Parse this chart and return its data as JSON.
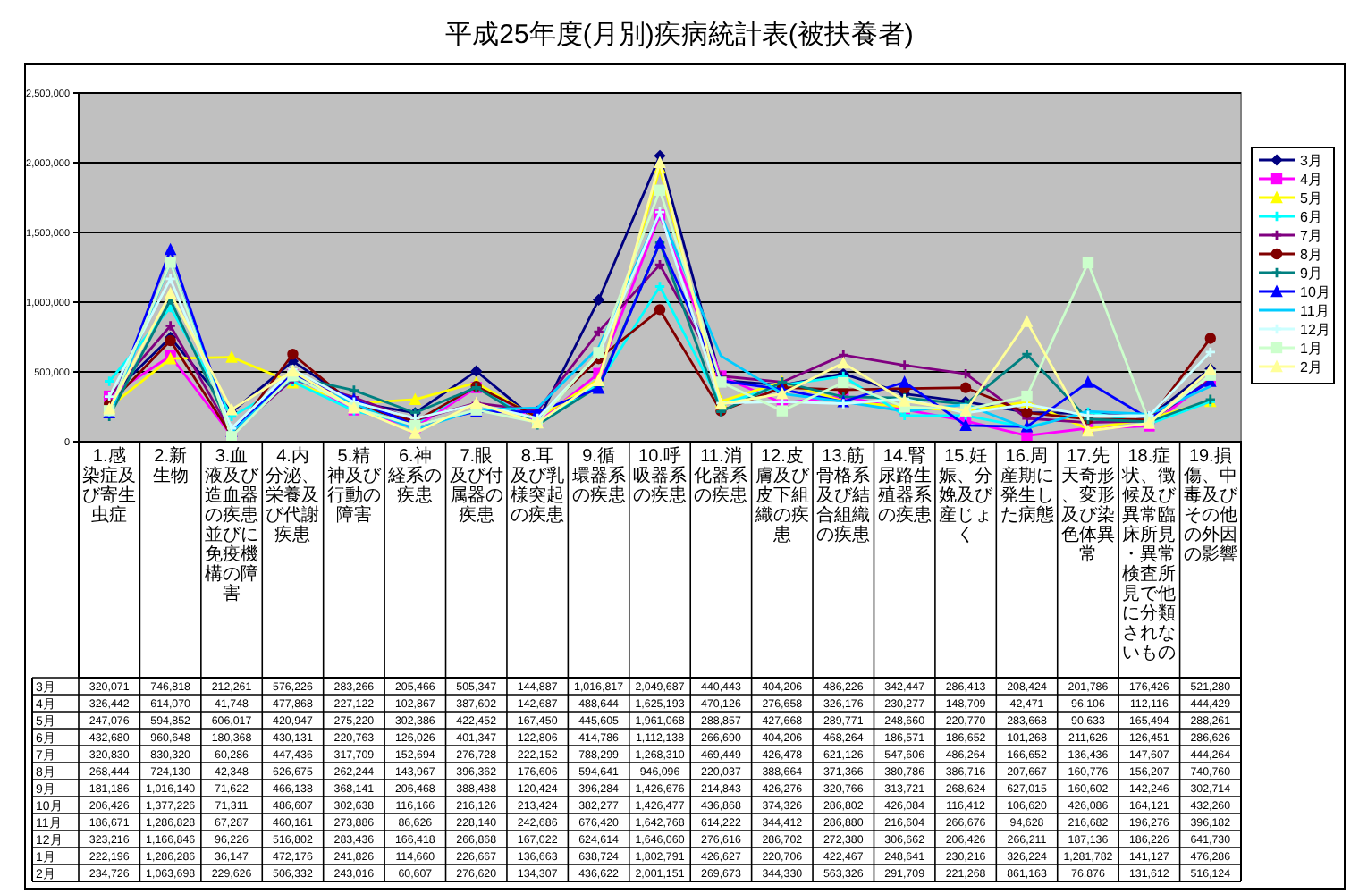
{
  "chart_data": {
    "type": "line",
    "title": "平成25年度(月別)疾病統計表(被扶養者)",
    "categories": [
      "1.感染症及び寄生虫症",
      "2.新生物",
      "3.血液及び造血器の疾患並びに免疫機構の障害",
      "4.内分泌、栄養及び代謝疾患",
      "5.精神及び行動の障害",
      "6.神経系の疾患",
      "7.眼及び付属器の疾患",
      "8.耳及び乳様突起の疾患",
      "9.循環器系の疾患",
      "10.呼吸器系の疾患",
      "11.消化器系の疾患",
      "12.皮膚及び皮下組織の疾患",
      "13.筋骨格系及び結合組織の疾患",
      "14.腎尿路生殖器系の疾患",
      "15.妊娠、分娩及び産じょく",
      "16.周産期に発生した病態",
      "17.先天奇形、変形及び染色体異常",
      "18.症状、徴候及び異常臨床所見・異常検査所見で他に分類されないもの",
      "19.損傷、中毒及びその他の外因の影響"
    ],
    "ylim": [
      0,
      2500000
    ],
    "yticks": [
      0,
      {
        "value": 500000,
        "label": "500,000"
      },
      {
        "value": 1000000,
        "label": "1,000,000"
      },
      {
        "value": 1500000,
        "label": "1,500,000"
      },
      {
        "value": 2000000,
        "label": "2,000,000"
      },
      {
        "value": 2500000,
        "label": "2,500,000"
      }
    ],
    "grid": "y",
    "legend": "right",
    "series": [
      {
        "name": "3月",
        "color": "#000080",
        "marker": "diamond",
        "values": [
          320071,
          746818,
          212261,
          576226,
          283266,
          205466,
          505347,
          144887,
          1016817,
          2049687,
          440443,
          404206,
          486226,
          342447,
          286413,
          208424,
          201786,
          176426,
          521280
        ],
        "value_labels": [
          "320,071",
          "746,818",
          "212,261",
          "576,226",
          "283,266",
          "205,466",
          "505,347",
          "144,887",
          "1,016,817",
          "2,049,687",
          "440,443",
          "404,206",
          "486,226",
          "342,447",
          "286,413",
          "208,424",
          "201,786",
          "176,426",
          "521,280"
        ]
      },
      {
        "name": "4月",
        "color": "#ff00ff",
        "marker": "square",
        "values": [
          326442,
          614070,
          41748,
          477868,
          227122,
          102867,
          387602,
          142687,
          488644,
          1625193,
          470126,
          276658,
          326176,
          230277,
          148709,
          42471,
          96106,
          112116,
          444429
        ],
        "value_labels": [
          "326,442",
          "614,070",
          "41,748",
          "477,868",
          "227,122",
          "102,867",
          "387,602",
          "142,687",
          "488,644",
          "1,625,193",
          "470,126",
          "276,658",
          "326,176",
          "230,277",
          "148,709",
          "42,471",
          "96,106",
          "112,116",
          "444,429"
        ]
      },
      {
        "name": "5月",
        "color": "#ffff00",
        "marker": "triangle",
        "values": [
          247076,
          594852,
          606017,
          420947,
          275220,
          302386,
          422452,
          167450,
          445605,
          1961068,
          288857,
          427668,
          289771,
          248660,
          220770,
          283668,
          90633,
          165494,
          288261
        ],
        "value_labels": [
          "247,076",
          "594,852",
          "606,017",
          "420,947",
          "275,220",
          "302,386",
          "422,452",
          "167,450",
          "445,605",
          "1,961,068",
          "288,857",
          "427,668",
          "289,771",
          "248,660",
          "220,770",
          "283,668",
          "90,633",
          "165,494",
          "288,261"
        ]
      },
      {
        "name": "6月",
        "color": "#00ffff",
        "marker": "cross",
        "values": [
          432680,
          960648,
          180368,
          430131,
          220763,
          126026,
          401347,
          122806,
          414786,
          1112138,
          266690,
          404206,
          468264,
          186571,
          186652,
          101268,
          211626,
          126451,
          286626
        ],
        "value_labels": [
          "432,680",
          "960,648",
          "180,368",
          "430,131",
          "220,763",
          "126,026",
          "401,347",
          "122,806",
          "414,786",
          "1,112,138",
          "266,690",
          "404,206",
          "468,264",
          "186,571",
          "186,652",
          "101,268",
          "211,626",
          "126,451",
          "286,626"
        ]
      },
      {
        "name": "7月",
        "color": "#800080",
        "marker": "cross",
        "values": [
          320830,
          830320,
          60286,
          447436,
          317709,
          152694,
          276728,
          222152,
          788299,
          1268310,
          469449,
          426478,
          621126,
          547606,
          486264,
          166652,
          136436,
          147607,
          444264
        ],
        "value_labels": [
          "320,830",
          "830,320",
          "60,286",
          "447,436",
          "317,709",
          "152,694",
          "276,728",
          "222,152",
          "788,299",
          "1,268,310",
          "469,449",
          "426,478",
          "621,126",
          "547,606",
          "486,264",
          "166,652",
          "136,436",
          "147,607",
          "444,264"
        ]
      },
      {
        "name": "8月",
        "color": "#800000",
        "marker": "circle",
        "values": [
          268444,
          724130,
          42348,
          626675,
          262244,
          143967,
          396362,
          176606,
          594641,
          946096,
          220037,
          388664,
          371366,
          380786,
          386716,
          207667,
          160776,
          156207,
          740760
        ],
        "value_labels": [
          "268,444",
          "724,130",
          "42,348",
          "626,675",
          "262,244",
          "143,967",
          "396,362",
          "176,606",
          "594,641",
          "946,096",
          "220,037",
          "388,664",
          "371,366",
          "380,786",
          "386,716",
          "207,667",
          "160,776",
          "156,207",
          "740,760"
        ]
      },
      {
        "name": "9月",
        "color": "#008080",
        "marker": "cross",
        "values": [
          181186,
          1016140,
          71622,
          466138,
          368141,
          206468,
          388488,
          120424,
          396284,
          1426676,
          214843,
          426276,
          320766,
          313721,
          268624,
          627015,
          160602,
          142246,
          302714
        ],
        "value_labels": [
          "181,186",
          "1,016,140",
          "71,622",
          "466,138",
          "368,141",
          "206,468",
          "388,488",
          "120,424",
          "396,284",
          "1,426,676",
          "214,843",
          "426,276",
          "320,766",
          "313,721",
          "268,624",
          "627,015",
          "160,602",
          "142,246",
          "302,714"
        ]
      },
      {
        "name": "10月",
        "color": "#0000ff",
        "marker": "triangle",
        "values": [
          206426,
          1377226,
          71311,
          486607,
          302638,
          116166,
          216126,
          213424,
          382277,
          1426477,
          436868,
          374326,
          286802,
          426084,
          116412,
          106620,
          426086,
          164121,
          432260
        ],
        "value_labels": [
          "206,426",
          "1,377,226",
          "71,311",
          "486,607",
          "302,638",
          "116,166",
          "216,126",
          "213,424",
          "382,277",
          "1,426,477",
          "436,868",
          "374,326",
          "286,802",
          "426,084",
          "116,412",
          "106,620",
          "426,086",
          "164,121",
          "432,260"
        ]
      },
      {
        "name": "11月",
        "color": "#00ccff",
        "marker": "none",
        "values": [
          186671,
          1286828,
          67287,
          460161,
          273886,
          86626,
          228140,
          242686,
          676420,
          1642768,
          614222,
          344412,
          286880,
          216604,
          266676,
          94628,
          216682,
          196276,
          396182
        ],
        "value_labels": [
          "186,671",
          "1,286,828",
          "67,287",
          "460,161",
          "273,886",
          "86,626",
          "228,140",
          "242,686",
          "676,420",
          "1,642,768",
          "614,222",
          "344,412",
          "286,880",
          "216,604",
          "266,676",
          "94,628",
          "216,682",
          "196,276",
          "396,182"
        ]
      },
      {
        "name": "12月",
        "color": "#ccffff",
        "marker": "cross",
        "values": [
          323216,
          1166846,
          96226,
          516802,
          283436,
          166418,
          266868,
          167022,
          624614,
          1646060,
          276616,
          286702,
          272380,
          306662,
          206426,
          266211,
          187136,
          186226,
          641730
        ],
        "value_labels": [
          "323,216",
          "1,166,846",
          "96,226",
          "516,802",
          "283,436",
          "166,418",
          "266,868",
          "167,022",
          "624,614",
          "1,646,060",
          "276,616",
          "286,702",
          "272,380",
          "306,662",
          "206,426",
          "266,211",
          "187,136",
          "186,226",
          "641,730"
        ]
      },
      {
        "name": "1月",
        "color": "#ccffcc",
        "marker": "square",
        "values": [
          222196,
          1286286,
          36147,
          472176,
          241826,
          114660,
          226667,
          136663,
          638724,
          1802791,
          426627,
          220706,
          422467,
          248641,
          230216,
          326224,
          1281782,
          141127,
          476286
        ],
        "value_labels": [
          "222,196",
          "1,286,286",
          "36,147",
          "472,176",
          "241,826",
          "114,660",
          "226,667",
          "136,663",
          "638,724",
          "1,802,791",
          "426,627",
          "220,706",
          "422,467",
          "248,641",
          "230,216",
          "326,224",
          "1,281,782",
          "141,127",
          "476,286"
        ]
      },
      {
        "name": "2月",
        "color": "#ffff99",
        "marker": "triangle",
        "values": [
          234726,
          1063698,
          229626,
          506332,
          243016,
          60607,
          276620,
          134307,
          436622,
          2001151,
          269673,
          344330,
          563326,
          291709,
          221268,
          861163,
          76876,
          131612,
          516124
        ],
        "value_labels": [
          "234,726",
          "1,063,698",
          "229,626",
          "506,332",
          "243,016",
          "60,607",
          "276,620",
          "134,307",
          "436,622",
          "2,001,151",
          "269,673",
          "344,330",
          "563,326",
          "291,709",
          "221,268",
          "861,163",
          "76,876",
          "131,612",
          "516,124"
        ]
      }
    ]
  }
}
